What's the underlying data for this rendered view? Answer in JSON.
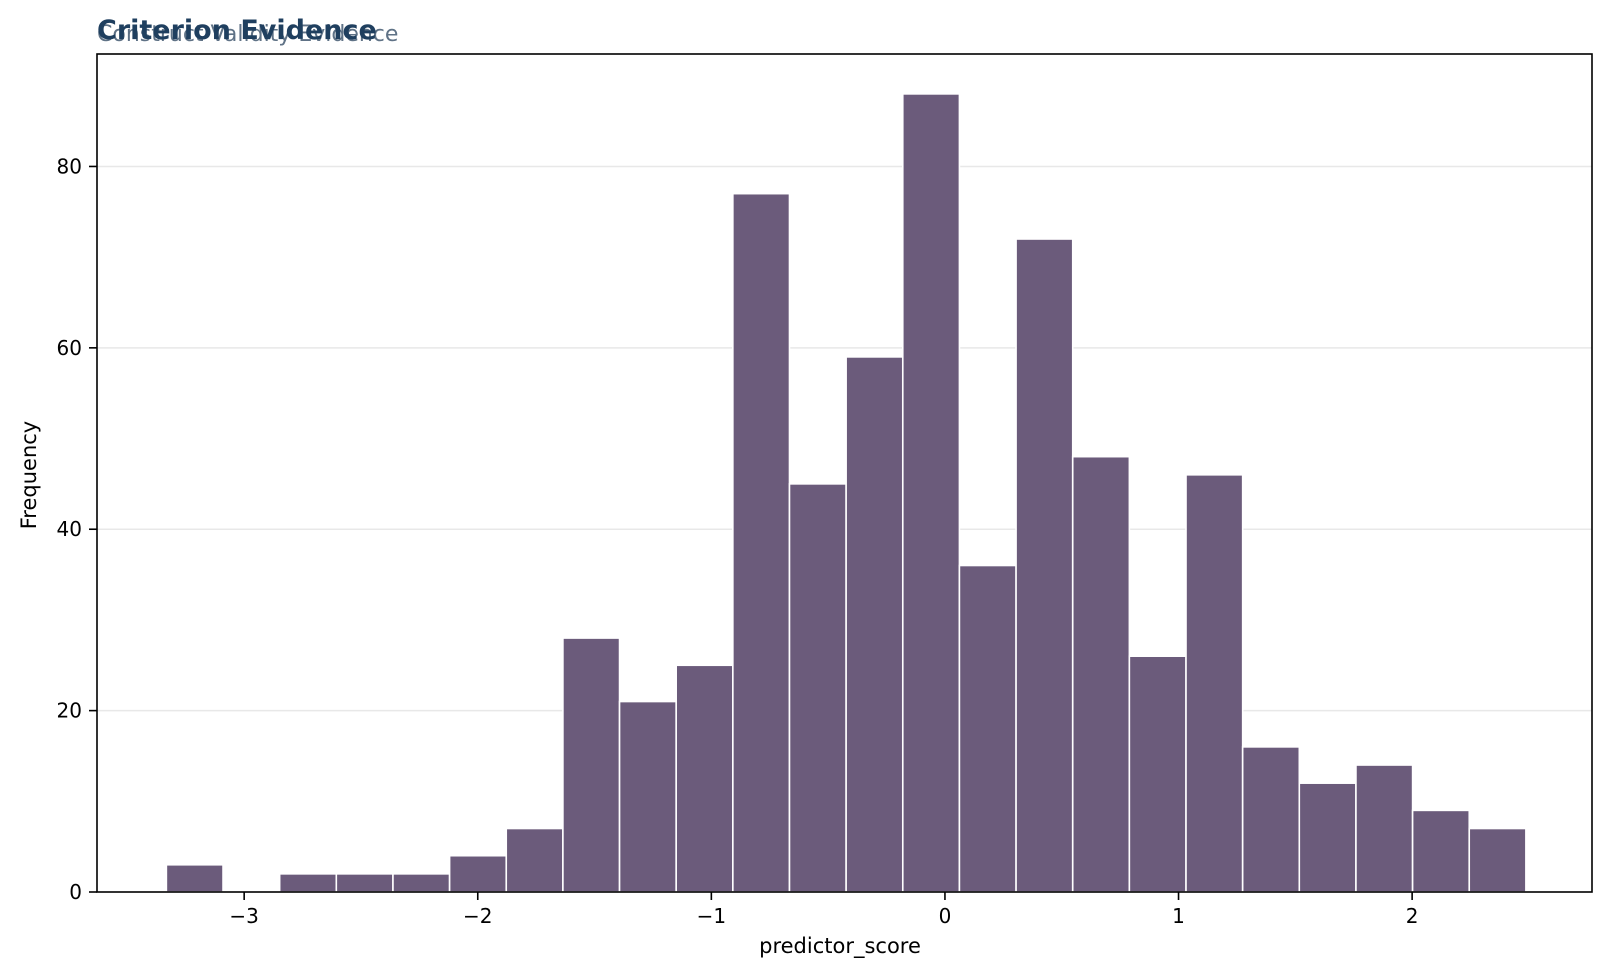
{
  "chart_data": {
    "type": "bar",
    "title": "Criterion Evidence",
    "subtitle": "Construct Validity Evidence",
    "xlabel": "predictor_score",
    "ylabel": "Frequency",
    "bin_start": -3.333,
    "bin_width": 0.2425,
    "values": [
      3,
      0,
      2,
      2,
      2,
      4,
      7,
      28,
      21,
      25,
      77,
      45,
      59,
      88,
      36,
      72,
      48,
      26,
      46,
      16,
      12,
      14,
      9,
      7
    ],
    "xlim": [
      -3.63,
      2.77
    ],
    "ylim": [
      0,
      92.4
    ],
    "xticks": [
      -3,
      -2,
      -1,
      0,
      1,
      2
    ],
    "xtick_labels": [
      "−3",
      "−2",
      "−1",
      "0",
      "1",
      "2"
    ],
    "yticks": [
      0,
      20,
      40,
      60,
      80
    ],
    "ytick_labels": [
      "0",
      "20",
      "40",
      "60",
      "80"
    ],
    "grid": "horizontal",
    "bar_color": "#6b5b7b",
    "title_color": "#1f3f5f"
  }
}
